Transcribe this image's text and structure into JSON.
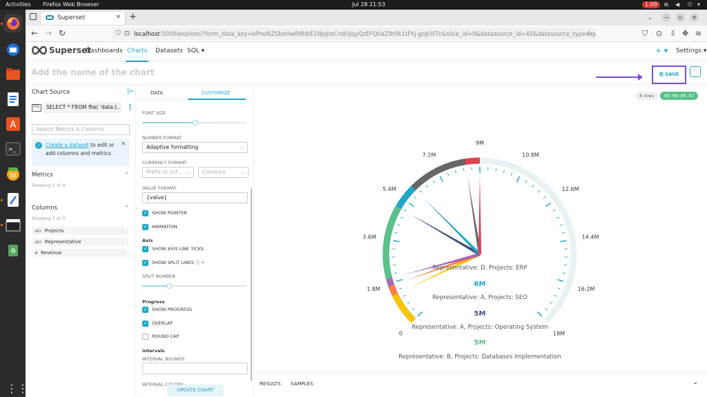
{
  "os": {
    "activities": "Activities",
    "app_name": "Firefox Web Browser",
    "clock": "Jul 28  21:53",
    "record_timer": "1:09"
  },
  "browser": {
    "tab_title": "Superset",
    "url_host": "localhost",
    "url_rest": ":5000/explore/?form_data_key=bPnoNZSboHwR8hbE1NJqistCndUJqyQzEFQ0aZ9r0k1tFhj-goJUif7c&slice_id=0&datasource_id=45&datasource_type=query"
  },
  "superset": {
    "brand": "Superset",
    "menu": [
      "Dashboards",
      "Charts",
      "Datasets",
      "SQL ▾"
    ],
    "active_menu": "Charts",
    "plus": "+ ▾",
    "settings": "Settings ▾",
    "chart_name_placeholder": "Add the name of the chart",
    "save_label": "SAVE",
    "more_label": "···"
  },
  "left_panel": {
    "title": "Chart Source",
    "dataset_name": "SELECT * FROM file( 'data.t...",
    "search_placeholder": "Search Metrics & Columns",
    "alert_link": "Create a dataset",
    "alert_text_1": " to edit or",
    "alert_text_2": "add columns and metrics.",
    "metrics_title": "Metrics",
    "metrics_count": "Showing 0 of 0",
    "columns_title": "Columns",
    "columns_count": "Showing 3 of 3",
    "columns": [
      {
        "type": "abc",
        "name": "Projects"
      },
      {
        "type": "abc",
        "name": "Representative"
      },
      {
        "type": "#",
        "name": "Revenue"
      }
    ]
  },
  "customize": {
    "tabs": [
      "DATA",
      "CUSTOMIZE"
    ],
    "font_size_label": "FONT SIZE",
    "font_size_level": 0.51,
    "number_format_label": "NUMBER FORMAT",
    "number_format_value": "Adaptive formatting",
    "currency_format_label": "CURRENCY FORMAT",
    "currency_prefix_placeholder": "Prefix or suf...",
    "currency_placeholder": "Currency",
    "value_format_label": "VALUE FORMAT",
    "value_format_value": "{value}",
    "show_pointer": "SHOW POINTER",
    "animation": "ANIMATION",
    "axis_group": "Axis",
    "show_axis_ticks": "SHOW AXIS LINE TICKS",
    "show_split_lines": "SHOW SPLIT LINES ⓘ ⚡",
    "split_number_label": "SPLIT NUMBER",
    "split_number_level": 0.26,
    "progress_group": "Progress",
    "show_progress": "SHOW PROGRESS",
    "overlap": "OVERLAP",
    "round_cap": "ROUND CAP",
    "intervals_group": "Intervals",
    "interval_bounds_label": "INTERVAL BOUNDS",
    "interval_colors_label": "INTERVAL COLORS",
    "update_chart": "UPDATE CHART"
  },
  "chart_meta": {
    "rows": "8 rows",
    "timer": "00:00:00.47"
  },
  "results_tabs": [
    "RESULTS",
    "SAMPLES"
  ],
  "chart_data": {
    "type": "gauge",
    "min": 0,
    "max": 18000000,
    "start_angle": 225,
    "end_angle": -45,
    "axis_labels": [
      "0",
      "1.8M",
      "3.6M",
      "5.4M",
      "7.2M",
      "9M",
      "10.8M",
      "12.6M",
      "14.4M",
      "16.2M",
      "18M"
    ],
    "series": [
      {
        "name": "Representative: D, Projects: ERP",
        "label": "6M",
        "value": 6000000,
        "color": "#20a7c9"
      },
      {
        "name": "Representative: A, Projects: SEO",
        "label": "5M",
        "value": 5000000,
        "color": "#454e7c"
      },
      {
        "name": "Representative: A, Projects: Operating System",
        "label": "5M",
        "value": 5000000,
        "color": "#5ac189"
      },
      {
        "name": "Representative: B, Projects: Databases Implementation",
        "label": "",
        "value": 2000000,
        "color": "#a868b7"
      },
      {
        "name": "",
        "label": "",
        "value": 8400000,
        "color": "#666666"
      },
      {
        "name": "",
        "label": "",
        "value": 9000000,
        "color": "#e04355"
      },
      {
        "name": "",
        "label": "",
        "value": 1300000,
        "color": "#fcc700"
      },
      {
        "name": "",
        "label": "",
        "value": 1700000,
        "color": "#ff7f44"
      }
    ]
  }
}
